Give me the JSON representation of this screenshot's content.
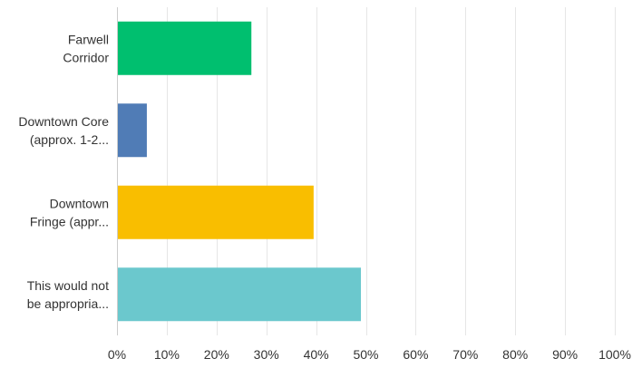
{
  "chart_data": {
    "type": "bar",
    "orientation": "horizontal",
    "categories": [
      [
        "Farwell",
        "Corridor"
      ],
      [
        "Downtown Core",
        "(approx. 1-2..."
      ],
      [
        "Downtown",
        "Fringe (appr..."
      ],
      [
        "This would not",
        "be appropria..."
      ]
    ],
    "values": [
      27,
      6,
      39.5,
      49
    ],
    "colors": [
      "#00bf6f",
      "#507cb6",
      "#f9be00",
      "#6bc8cd"
    ],
    "xlim": [
      0,
      100
    ],
    "xticks": [
      "0%",
      "10%",
      "20%",
      "30%",
      "40%",
      "50%",
      "60%",
      "70%",
      "80%",
      "90%",
      "100%"
    ],
    "grid": true,
    "legend": "none"
  }
}
